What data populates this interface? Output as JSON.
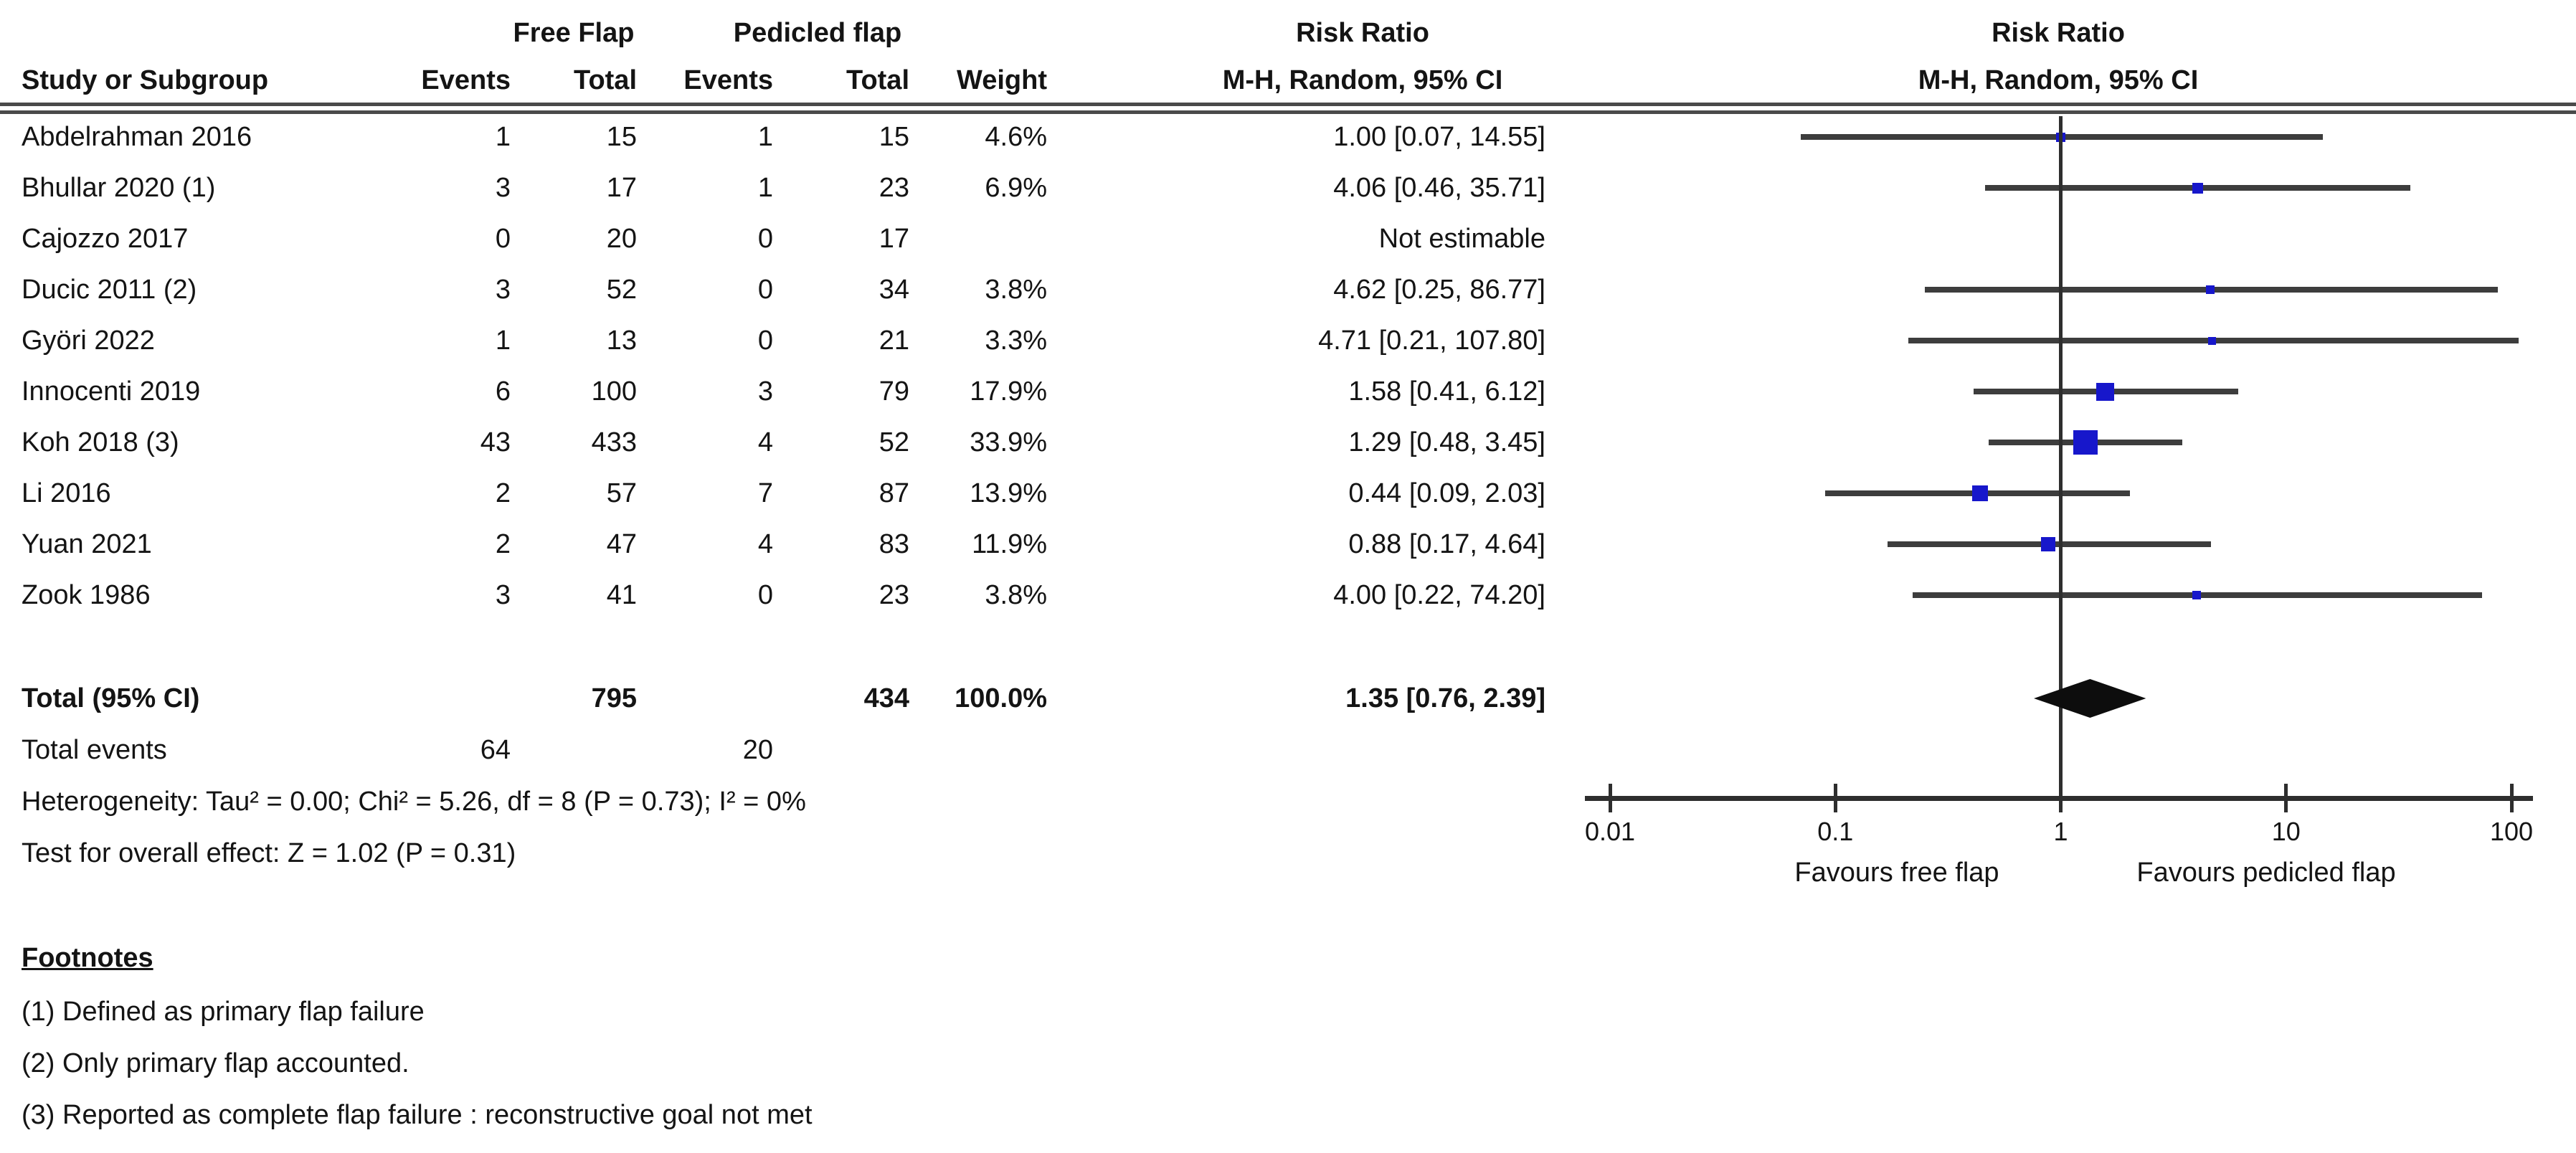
{
  "header": {
    "col_study": "Study or Subgroup",
    "group1": "Free Flap",
    "group2": "Pedicled flap",
    "col_events": "Events",
    "col_total": "Total",
    "col_weight": "Weight",
    "stat_col_title": "Risk Ratio",
    "stat_col_sub": "M-H, Random, 95% CI",
    "plot_col_title": "Risk Ratio",
    "plot_col_sub": "M-H, Random, 95% CI"
  },
  "chart_data": {
    "type": "forest",
    "effect_measure": "Risk Ratio",
    "method": "Mantel-Haenszel, Random effects, 95% CI",
    "studies": [
      {
        "name": "Abdelrahman 2016",
        "events1": 1,
        "total1": 15,
        "events2": 1,
        "total2": 15,
        "weight": "4.6%",
        "weight_pct": 4.6,
        "ci_label": "1.00 [0.07, 14.55]",
        "rr": 1.0,
        "lo": 0.07,
        "hi": 14.55,
        "estimable": true
      },
      {
        "name": "Bhullar 2020 (1)",
        "events1": 3,
        "total1": 17,
        "events2": 1,
        "total2": 23,
        "weight": "6.9%",
        "weight_pct": 6.9,
        "ci_label": "4.06 [0.46, 35.71]",
        "rr": 4.06,
        "lo": 0.46,
        "hi": 35.71,
        "estimable": true
      },
      {
        "name": "Cajozzo 2017",
        "events1": 0,
        "total1": 20,
        "events2": 0,
        "total2": 17,
        "weight": "",
        "weight_pct": 0,
        "ci_label": "Not estimable",
        "rr": null,
        "lo": null,
        "hi": null,
        "estimable": false
      },
      {
        "name": "Ducic 2011 (2)",
        "events1": 3,
        "total1": 52,
        "events2": 0,
        "total2": 34,
        "weight": "3.8%",
        "weight_pct": 3.8,
        "ci_label": "4.62 [0.25, 86.77]",
        "rr": 4.62,
        "lo": 0.25,
        "hi": 86.77,
        "estimable": true
      },
      {
        "name": "Györi 2022",
        "events1": 1,
        "total1": 13,
        "events2": 0,
        "total2": 21,
        "weight": "3.3%",
        "weight_pct": 3.3,
        "ci_label": "4.71 [0.21, 107.80]",
        "rr": 4.71,
        "lo": 0.21,
        "hi": 107.8,
        "estimable": true
      },
      {
        "name": "Innocenti 2019",
        "events1": 6,
        "total1": 100,
        "events2": 3,
        "total2": 79,
        "weight": "17.9%",
        "weight_pct": 17.9,
        "ci_label": "1.58 [0.41, 6.12]",
        "rr": 1.58,
        "lo": 0.41,
        "hi": 6.12,
        "estimable": true
      },
      {
        "name": "Koh 2018 (3)",
        "events1": 43,
        "total1": 433,
        "events2": 4,
        "total2": 52,
        "weight": "33.9%",
        "weight_pct": 33.9,
        "ci_label": "1.29 [0.48, 3.45]",
        "rr": 1.29,
        "lo": 0.48,
        "hi": 3.45,
        "estimable": true
      },
      {
        "name": "Li 2016",
        "events1": 2,
        "total1": 57,
        "events2": 7,
        "total2": 87,
        "weight": "13.9%",
        "weight_pct": 13.9,
        "ci_label": "0.44 [0.09, 2.03]",
        "rr": 0.44,
        "lo": 0.09,
        "hi": 2.03,
        "estimable": true
      },
      {
        "name": "Yuan 2021",
        "events1": 2,
        "total1": 47,
        "events2": 4,
        "total2": 83,
        "weight": "11.9%",
        "weight_pct": 11.9,
        "ci_label": "0.88 [0.17, 4.64]",
        "rr": 0.88,
        "lo": 0.17,
        "hi": 4.64,
        "estimable": true
      },
      {
        "name": "Zook 1986",
        "events1": 3,
        "total1": 41,
        "events2": 0,
        "total2": 23,
        "weight": "3.8%",
        "weight_pct": 3.8,
        "ci_label": "4.00 [0.22, 74.20]",
        "rr": 4.0,
        "lo": 0.22,
        "hi": 74.2,
        "estimable": true
      }
    ],
    "total": {
      "label": "Total (95% CI)",
      "total1": 795,
      "total2": 434,
      "weight": "100.0%",
      "ci_label": "1.35 [0.76, 2.39]",
      "rr": 1.35,
      "lo": 0.76,
      "hi": 2.39
    },
    "total_events": {
      "label": "Total events",
      "events1": 64,
      "events2": 20
    },
    "heterogeneity": "Heterogeneity: Tau² = 0.00; Chi² = 5.26, df = 8 (P = 0.73); I² = 0%",
    "overall_effect": "Test for overall effect: Z = 1.02 (P = 0.31)",
    "axis": {
      "scale": "log",
      "min": 0.01,
      "max": 100,
      "ticks": [
        0.01,
        0.1,
        1,
        10,
        100
      ],
      "tick_labels": [
        "0.01",
        "0.1",
        "1",
        "10",
        "100"
      ],
      "null_line": 1
    },
    "favours_left": "Favours free flap",
    "favours_right": "Favours pedicled flap",
    "colors": {
      "square": "#1717cb",
      "ci_line": "#3d3d3d",
      "diamond": "#0d0d0d",
      "axis": "#2e2e2e"
    }
  },
  "footnotes": {
    "heading": "Footnotes",
    "items": [
      "(1) Defined as primary flap failure",
      "(2) Only primary flap accounted.",
      "(3) Reported as complete flap failure : reconstructive goal not met"
    ]
  }
}
